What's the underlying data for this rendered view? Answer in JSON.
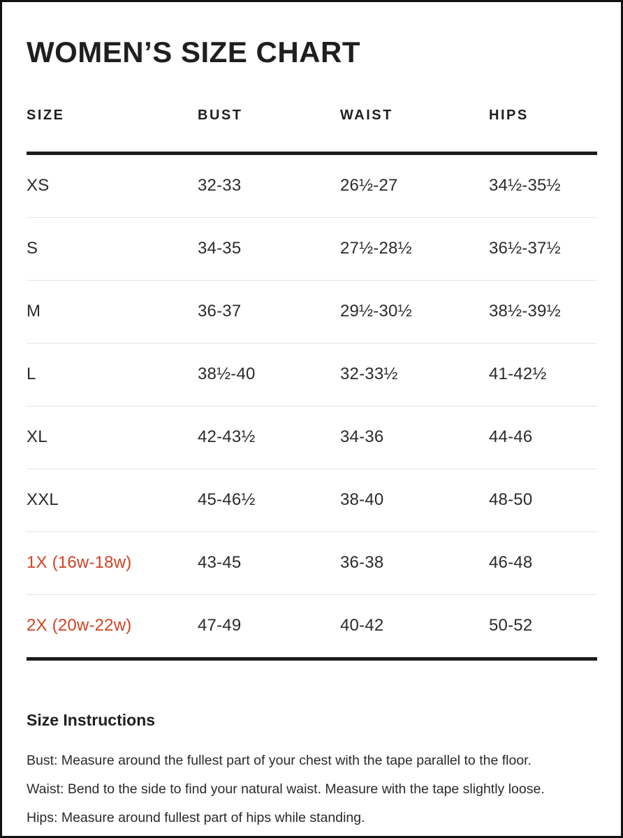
{
  "page": {
    "title": "WOMEN’S SIZE CHART"
  },
  "colors": {
    "accent": "#d04225",
    "text": "#222222",
    "rule_heavy": "#1d1d1d",
    "rule_light": "#e4e4e4"
  },
  "table": {
    "columns": [
      "SIZE",
      "BUST",
      "WAIST",
      "HIPS"
    ],
    "rows": [
      {
        "size": "XS",
        "bust": "32-33",
        "waist": "26½-27",
        "hips": "34½-35½",
        "highlight": false
      },
      {
        "size": "S",
        "bust": "34-35",
        "waist": "27½-28½",
        "hips": "36½-37½",
        "highlight": false
      },
      {
        "size": "M",
        "bust": "36-37",
        "waist": "29½-30½",
        "hips": "38½-39½",
        "highlight": false
      },
      {
        "size": "L",
        "bust": "38½-40",
        "waist": "32-33½",
        "hips": "41-42½",
        "highlight": false
      },
      {
        "size": "XL",
        "bust": "42-43½",
        "waist": "34-36",
        "hips": "44-46",
        "highlight": false
      },
      {
        "size": "XXL",
        "bust": "45-46½",
        "waist": "38-40",
        "hips": "48-50",
        "highlight": false
      },
      {
        "size": "1X (16w-18w)",
        "bust": "43-45",
        "waist": "36-38",
        "hips": "46-48",
        "highlight": true
      },
      {
        "size": "2X (20w-22w)",
        "bust": "47-49",
        "waist": "40-42",
        "hips": "50-52",
        "highlight": true
      }
    ]
  },
  "instructions": {
    "heading": "Size Instructions",
    "lines": [
      "Bust: Measure around the fullest part of your chest with the tape parallel to the floor.",
      "Waist: Bend to the side to find your natural waist. Measure with the tape slightly loose.",
      "Hips: Measure around fullest part of hips while standing."
    ]
  }
}
